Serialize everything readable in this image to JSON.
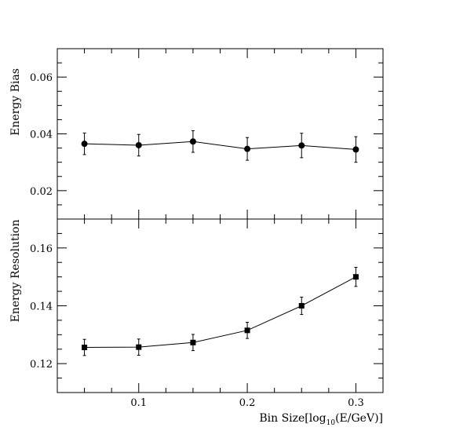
{
  "chart_data": [
    {
      "type": "line",
      "panel": "top",
      "ylabel": "Energy Bias",
      "xlim": [
        0.025,
        0.325
      ],
      "ylim": [
        0.01,
        0.07
      ],
      "yticks": [
        "0.02",
        "0.04",
        "0.06"
      ],
      "marker": "circle",
      "grid": false,
      "series": [
        {
          "x": [
            0.05,
            0.1,
            0.15,
            0.2,
            0.25,
            0.3
          ],
          "values": [
            0.0365,
            0.036,
            0.0373,
            0.0347,
            0.0359,
            0.0345
          ],
          "errors": [
            0.0038,
            0.0038,
            0.0038,
            0.004,
            0.0043,
            0.0045
          ]
        }
      ]
    },
    {
      "type": "line",
      "panel": "bottom",
      "ylabel": "Energy Resolution",
      "xlabel": "Bin Size[log",
      "xlabel_sub": "10",
      "xlabel_tail": "(E/GeV)]",
      "xlim": [
        0.025,
        0.325
      ],
      "ylim": [
        0.11,
        0.17
      ],
      "xticks": [
        "0.1",
        "0.2",
        "0.3"
      ],
      "yticks": [
        "0.12",
        "0.14",
        "0.16"
      ],
      "marker": "square",
      "grid": false,
      "series": [
        {
          "x": [
            0.05,
            0.1,
            0.15,
            0.2,
            0.25,
            0.3
          ],
          "values": [
            0.1256,
            0.1257,
            0.1273,
            0.1315,
            0.14,
            0.15
          ],
          "errors": [
            0.0028,
            0.0028,
            0.0028,
            0.0028,
            0.003,
            0.0033
          ]
        }
      ]
    }
  ]
}
